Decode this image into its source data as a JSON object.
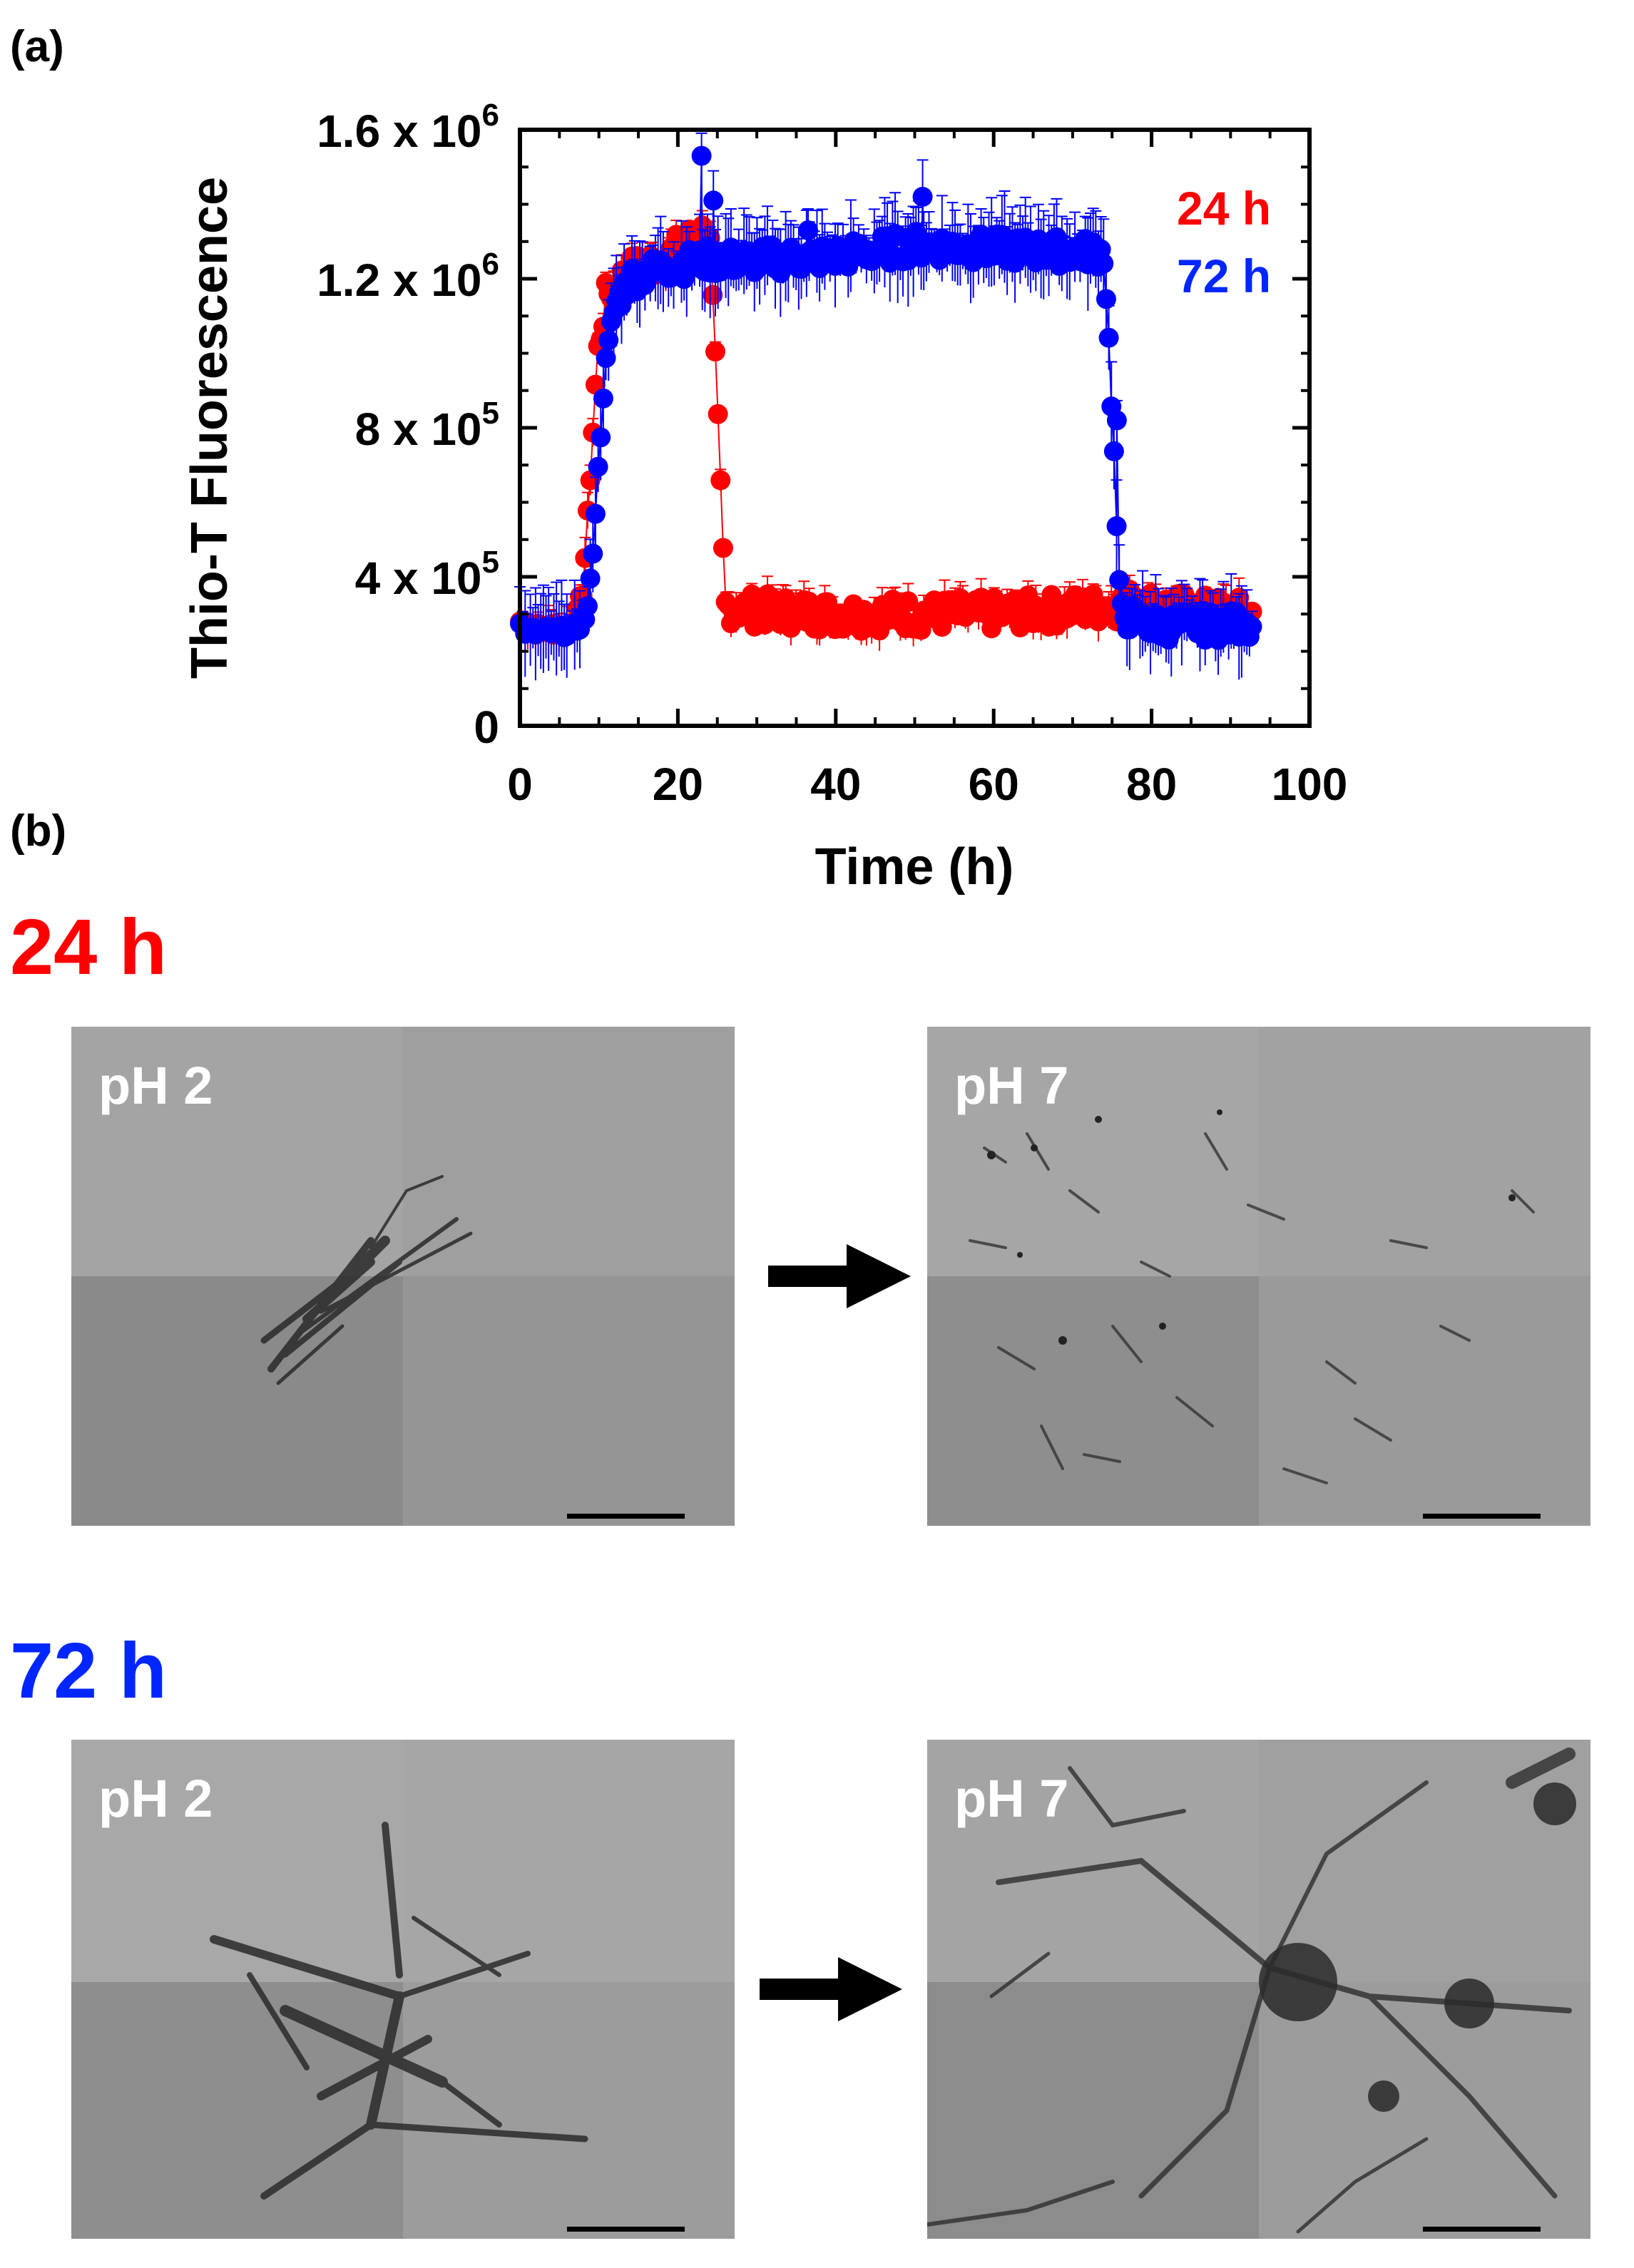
{
  "panel_a_label": "(a)",
  "panel_b_label": "(b)",
  "chart_data": {
    "type": "scatter",
    "xlabel": "Time (h)",
    "ylabel": "Thio-T Fluorescence",
    "xlim": [
      0,
      100
    ],
    "ylim": [
      0,
      1600000
    ],
    "x_ticks": [
      "0",
      "20",
      "40",
      "60",
      "80",
      "100"
    ],
    "y_ticks": [
      {
        "value": 0,
        "base": "0",
        "exp": ""
      },
      {
        "value": 400000,
        "base": "4 x 10",
        "exp": "5"
      },
      {
        "value": 800000,
        "base": "8 x 10",
        "exp": "5"
      },
      {
        "value": 1200000,
        "base": "1.2 x 10",
        "exp": "6"
      },
      {
        "value": 1600000,
        "base": "1.6 x 10",
        "exp": "6"
      }
    ],
    "legend_position": "top-right",
    "error_bars": true,
    "series": [
      {
        "name": "24 h",
        "color": "#ff0000",
        "profile": [
          [
            0,
            280000
          ],
          [
            1,
            260000
          ],
          [
            5,
            260000
          ],
          [
            7,
            275000
          ],
          [
            8,
            370000
          ],
          [
            9,
            700000
          ],
          [
            9.8,
            1000000
          ],
          [
            11,
            1160000
          ],
          [
            14,
            1220000
          ],
          [
            18,
            1250000
          ],
          [
            22,
            1310000
          ],
          [
            24,
            1330000
          ],
          [
            25,
            840000
          ],
          [
            26,
            320000
          ],
          [
            30,
            310000
          ],
          [
            40,
            300000
          ],
          [
            60,
            300000
          ],
          [
            75,
            320000
          ],
          [
            77,
            330000
          ],
          [
            85,
            310000
          ],
          [
            93,
            300000
          ]
        ],
        "noise": 45000,
        "err": 40000
      },
      {
        "name": "72 h",
        "color": "#0000ff",
        "profile": [
          [
            0,
            270000
          ],
          [
            1,
            250000
          ],
          [
            7,
            255000
          ],
          [
            8.5,
            300000
          ],
          [
            9,
            400000
          ],
          [
            9.8,
            650000
          ],
          [
            10.5,
            900000
          ],
          [
            12,
            1130000
          ],
          [
            14,
            1200000
          ],
          [
            18,
            1230000
          ],
          [
            24,
            1250000
          ],
          [
            30,
            1250000
          ],
          [
            40,
            1260000
          ],
          [
            50,
            1290000
          ],
          [
            60,
            1280000
          ],
          [
            74,
            1270000
          ],
          [
            75,
            850000
          ],
          [
            76,
            300000
          ],
          [
            80,
            270000
          ],
          [
            90,
            270000
          ],
          [
            93,
            280000
          ]
        ],
        "noise": 40000,
        "err": 90000,
        "outliers": [
          [
            23,
            1530000
          ],
          [
            24.5,
            1410000
          ],
          [
            36.5,
            1330000
          ],
          [
            51,
            1420000
          ],
          [
            75.6,
            820000
          ]
        ]
      }
    ]
  },
  "section_24_title": "24 h",
  "section_72_title": "72 h",
  "colors": {
    "red": "#ff0000",
    "blue": "#0026ff"
  },
  "micrographs": {
    "a_ph2": {
      "label": "pH 2"
    },
    "a_ph7": {
      "label": "pH 7"
    },
    "b_ph2": {
      "label": "pH 2"
    },
    "b_ph7": {
      "label": "pH 7"
    }
  }
}
